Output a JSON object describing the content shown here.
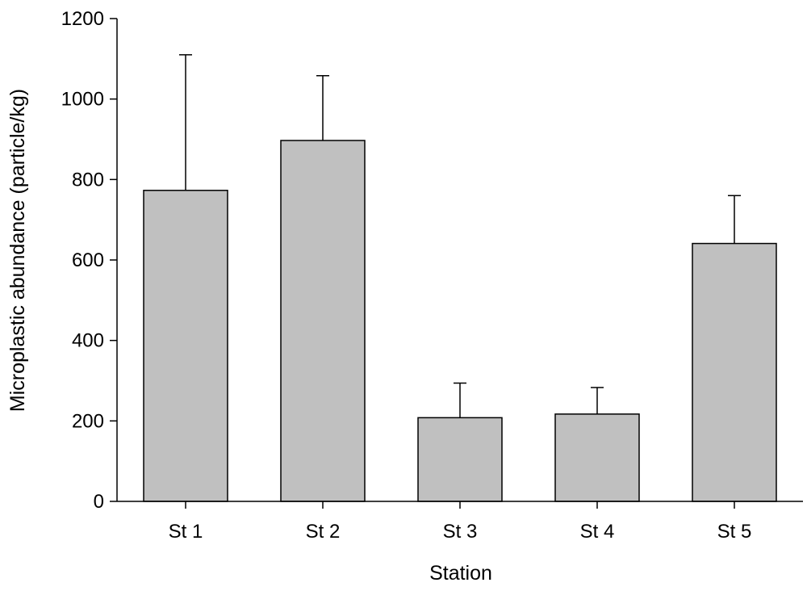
{
  "chart_data": {
    "type": "bar",
    "title": "",
    "xlabel": "Station",
    "ylabel": "Microplastic abundance (particle/kg)",
    "categories": [
      "St 1",
      "St 2",
      "St 3",
      "St 4",
      "St 5"
    ],
    "values": [
      773,
      897,
      208,
      217,
      641
    ],
    "error_upper": [
      1110,
      1058,
      294,
      283,
      760
    ],
    "ylim": [
      0,
      1200
    ],
    "yticks": [
      0,
      200,
      400,
      600,
      800,
      1000,
      1200
    ],
    "grid": false,
    "legend": "none",
    "colors": {
      "bar_fill": "#c0c0c0",
      "bar_stroke": "#000000",
      "axis": "#000000"
    }
  }
}
